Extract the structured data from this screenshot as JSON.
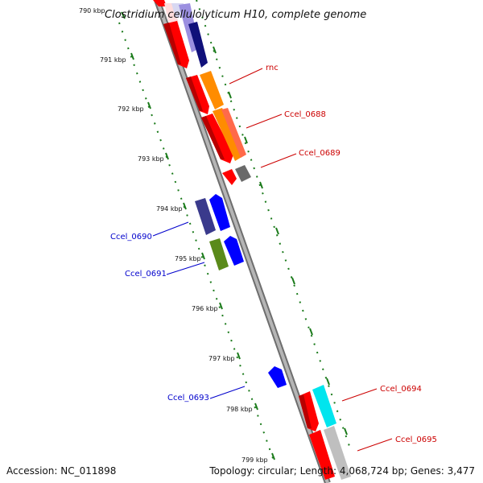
{
  "title": "Clostridium cellulolyticum H10, complete genome",
  "tick_labels": [
    "790 kbp",
    "791 kbp",
    "792 kbp",
    "793 kbp",
    "794 kbp",
    "795 kbp",
    "796 kbp",
    "797 kbp",
    "798 kbp",
    "799 kbp"
  ],
  "gene_labels": {
    "rnc": "rnc",
    "ccel_0688": "Ccel_0688",
    "ccel_0689": "Ccel_0689",
    "ccel_0690": "Ccel_0690",
    "ccel_0691": "Ccel_0691",
    "ccel_0693": "Ccel_0693",
    "ccel_0694": "Ccel_0694",
    "ccel_0695": "Ccel_0695"
  },
  "colors": {
    "forward_label": "#cc0000",
    "reverse_label": "#0000cc",
    "backbone": "#8c8c8c",
    "tick": "#1a7a1a"
  },
  "footer": {
    "accession": "Accession: NC_011898",
    "summary": "Topology: circular; Length: 4,068,724 bp; Genes: 3,477"
  }
}
